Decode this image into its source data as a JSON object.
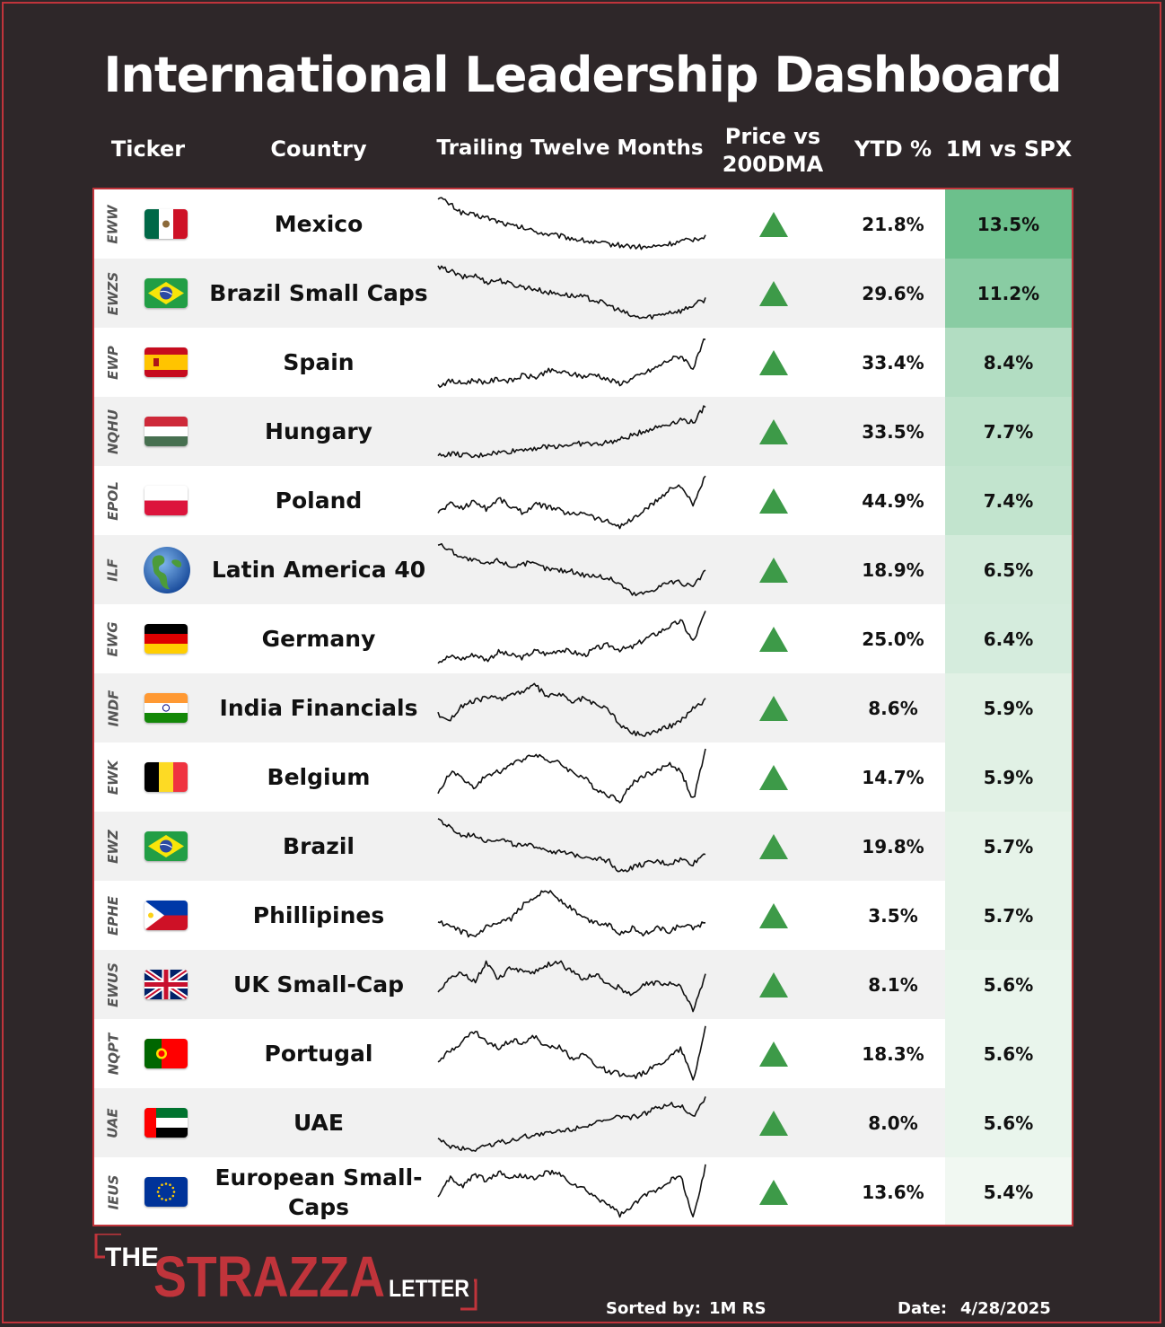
{
  "title": "International Leadership Dashboard",
  "headers": {
    "ticker": "Ticker",
    "country": "Country",
    "ttm": "Trailing Twelve Months",
    "price_line1": "Price vs",
    "price_line2": "200DMA",
    "ytd": "YTD %",
    "rs": "1M vs SPX"
  },
  "colors": {
    "background": "#2e2729",
    "accent_red": "#c0343b",
    "up_green": "#3d9a48",
    "heat_max": "#6cc08c",
    "heat_min": "#f1f8f2"
  },
  "rows": [
    {
      "ticker": "EWW",
      "country": "Mexico",
      "flag": "mexico",
      "above_200dma": true,
      "ytd": "21.8%",
      "rs": "13.5%"
    },
    {
      "ticker": "EWZS",
      "country": "Brazil Small Caps",
      "flag": "brazil",
      "above_200dma": true,
      "ytd": "29.6%",
      "rs": "11.2%"
    },
    {
      "ticker": "EWP",
      "country": "Spain",
      "flag": "spain",
      "above_200dma": true,
      "ytd": "33.4%",
      "rs": "8.4%"
    },
    {
      "ticker": "NQHU",
      "country": "Hungary",
      "flag": "hungary",
      "above_200dma": true,
      "ytd": "33.5%",
      "rs": "7.7%"
    },
    {
      "ticker": "EPOL",
      "country": "Poland",
      "flag": "poland",
      "above_200dma": true,
      "ytd": "44.9%",
      "rs": "7.4%"
    },
    {
      "ticker": "ILF",
      "country": "Latin America 40",
      "flag": "globe",
      "above_200dma": true,
      "ytd": "18.9%",
      "rs": "6.5%"
    },
    {
      "ticker": "EWG",
      "country": "Germany",
      "flag": "germany",
      "above_200dma": true,
      "ytd": "25.0%",
      "rs": "6.4%"
    },
    {
      "ticker": "INDF",
      "country": "India Financials",
      "flag": "india",
      "above_200dma": true,
      "ytd": "8.6%",
      "rs": "5.9%"
    },
    {
      "ticker": "EWK",
      "country": "Belgium",
      "flag": "belgium",
      "above_200dma": true,
      "ytd": "14.7%",
      "rs": "5.9%"
    },
    {
      "ticker": "EWZ",
      "country": "Brazil",
      "flag": "brazil",
      "above_200dma": true,
      "ytd": "19.8%",
      "rs": "5.7%"
    },
    {
      "ticker": "EPHE",
      "country": "Phillipines",
      "flag": "philippines",
      "above_200dma": true,
      "ytd": "3.5%",
      "rs": "5.7%"
    },
    {
      "ticker": "EWUS",
      "country": "UK Small-Cap",
      "flag": "uk",
      "above_200dma": true,
      "ytd": "8.1%",
      "rs": "5.6%"
    },
    {
      "ticker": "NQPT",
      "country": "Portugal",
      "flag": "portugal",
      "above_200dma": true,
      "ytd": "18.3%",
      "rs": "5.6%"
    },
    {
      "ticker": "UAE",
      "country": "UAE",
      "flag": "uae",
      "above_200dma": true,
      "ytd": "8.0%",
      "rs": "5.6%"
    },
    {
      "ticker": "IEUS",
      "country": "European Small-Caps",
      "flag": "eu",
      "above_200dma": true,
      "ytd": "13.6%",
      "rs": "5.4%"
    }
  ],
  "chart_data": {
    "type": "table",
    "columns": [
      "Ticker",
      "Country",
      "Trailing Twelve Months",
      "Price vs 200DMA",
      "YTD %",
      "1M vs SPX"
    ],
    "sparkline_shapes": [
      [
        0.98,
        0.85,
        0.7,
        0.66,
        0.62,
        0.55,
        0.48,
        0.44,
        0.38,
        0.33,
        0.3,
        0.26,
        0.22,
        0.18,
        0.16,
        0.14,
        0.12,
        0.1,
        0.12,
        0.16,
        0.2,
        0.24,
        0.3
      ],
      [
        0.95,
        0.9,
        0.78,
        0.82,
        0.7,
        0.74,
        0.66,
        0.62,
        0.58,
        0.52,
        0.5,
        0.46,
        0.44,
        0.38,
        0.3,
        0.2,
        0.1,
        0.08,
        0.12,
        0.18,
        0.2,
        0.3,
        0.4
      ],
      [
        0.1,
        0.18,
        0.14,
        0.2,
        0.16,
        0.22,
        0.18,
        0.28,
        0.24,
        0.36,
        0.34,
        0.3,
        0.26,
        0.3,
        0.2,
        0.14,
        0.22,
        0.32,
        0.42,
        0.55,
        0.62,
        0.4,
        0.95
      ],
      [
        0.08,
        0.12,
        0.1,
        0.06,
        0.12,
        0.14,
        0.16,
        0.2,
        0.22,
        0.24,
        0.26,
        0.28,
        0.3,
        0.28,
        0.32,
        0.36,
        0.44,
        0.52,
        0.58,
        0.64,
        0.72,
        0.66,
        0.96
      ],
      [
        0.3,
        0.45,
        0.38,
        0.5,
        0.36,
        0.55,
        0.4,
        0.3,
        0.44,
        0.4,
        0.34,
        0.26,
        0.32,
        0.2,
        0.14,
        0.06,
        0.18,
        0.34,
        0.5,
        0.7,
        0.78,
        0.4,
        0.95
      ],
      [
        0.96,
        0.85,
        0.72,
        0.66,
        0.6,
        0.68,
        0.56,
        0.62,
        0.6,
        0.52,
        0.5,
        0.48,
        0.42,
        0.4,
        0.36,
        0.26,
        0.08,
        0.1,
        0.2,
        0.3,
        0.28,
        0.2,
        0.5
      ],
      [
        0.12,
        0.2,
        0.16,
        0.24,
        0.14,
        0.28,
        0.22,
        0.18,
        0.3,
        0.24,
        0.32,
        0.28,
        0.22,
        0.34,
        0.4,
        0.32,
        0.36,
        0.5,
        0.6,
        0.72,
        0.82,
        0.45,
        0.98
      ],
      [
        0.4,
        0.3,
        0.55,
        0.62,
        0.7,
        0.66,
        0.74,
        0.8,
        0.9,
        0.7,
        0.76,
        0.6,
        0.68,
        0.55,
        0.5,
        0.2,
        0.08,
        0.04,
        0.12,
        0.18,
        0.3,
        0.5,
        0.65
      ],
      [
        0.2,
        0.6,
        0.5,
        0.3,
        0.55,
        0.6,
        0.72,
        0.82,
        0.92,
        0.8,
        0.75,
        0.6,
        0.5,
        0.3,
        0.2,
        0.1,
        0.4,
        0.55,
        0.6,
        0.75,
        0.6,
        0.1,
        0.98
      ],
      [
        0.98,
        0.82,
        0.68,
        0.72,
        0.6,
        0.64,
        0.56,
        0.5,
        0.52,
        0.44,
        0.4,
        0.36,
        0.34,
        0.3,
        0.26,
        0.06,
        0.14,
        0.2,
        0.24,
        0.2,
        0.28,
        0.2,
        0.4
      ],
      [
        0.4,
        0.3,
        0.22,
        0.12,
        0.3,
        0.35,
        0.45,
        0.68,
        0.85,
        0.95,
        0.78,
        0.62,
        0.45,
        0.38,
        0.35,
        0.2,
        0.28,
        0.18,
        0.3,
        0.22,
        0.34,
        0.28,
        0.4
      ],
      [
        0.4,
        0.62,
        0.7,
        0.55,
        0.9,
        0.6,
        0.8,
        0.75,
        0.72,
        0.85,
        0.9,
        0.72,
        0.6,
        0.7,
        0.5,
        0.45,
        0.3,
        0.5,
        0.55,
        0.52,
        0.48,
        0.04,
        0.7
      ],
      [
        0.4,
        0.55,
        0.72,
        0.9,
        0.7,
        0.6,
        0.75,
        0.7,
        0.8,
        0.6,
        0.65,
        0.42,
        0.5,
        0.3,
        0.2,
        0.15,
        0.08,
        0.18,
        0.3,
        0.45,
        0.6,
        0.04,
        0.98
      ],
      [
        0.2,
        0.1,
        0.06,
        0.04,
        0.12,
        0.16,
        0.2,
        0.26,
        0.3,
        0.32,
        0.36,
        0.4,
        0.46,
        0.5,
        0.54,
        0.62,
        0.6,
        0.66,
        0.76,
        0.84,
        0.8,
        0.62,
        0.94
      ],
      [
        0.4,
        0.75,
        0.6,
        0.82,
        0.7,
        0.85,
        0.75,
        0.8,
        0.72,
        0.86,
        0.8,
        0.65,
        0.55,
        0.4,
        0.3,
        0.1,
        0.25,
        0.45,
        0.55,
        0.7,
        0.78,
        0.04,
        0.95
      ]
    ]
  },
  "footer": {
    "logo_the": "THE",
    "logo_strazza": "STRAZZA",
    "logo_letter": "LETTER",
    "sorted_label": "Sorted by:",
    "sorted_value": "1M RS",
    "date_label": "Date:",
    "date_value": "4/28/2025"
  }
}
